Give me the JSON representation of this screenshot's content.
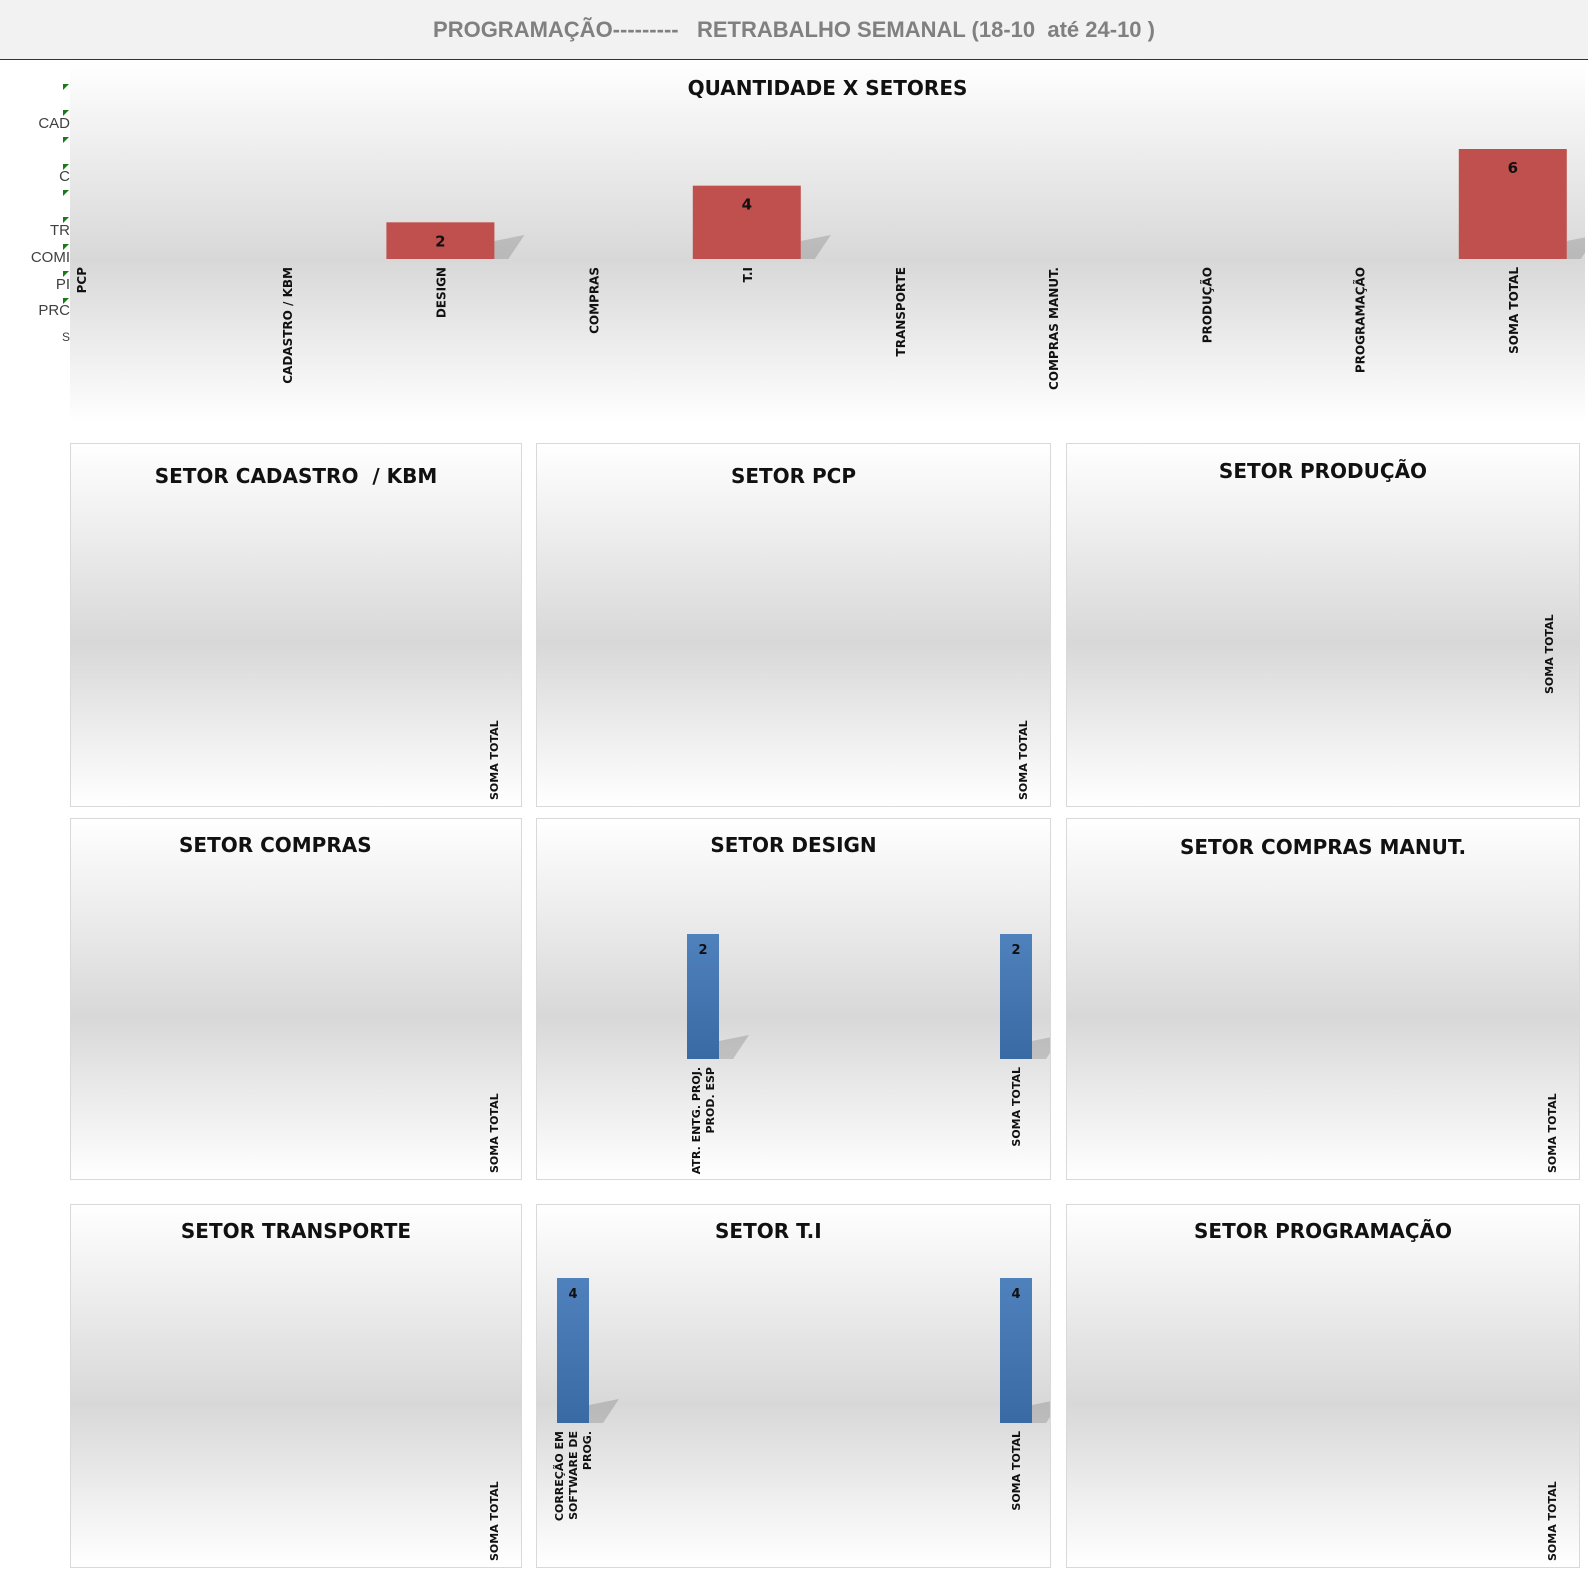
{
  "header": {
    "title": "PROGRAMAÇÃO---------   RETRABALHO SEMANAL (18-10  até 24-10 )"
  },
  "side_labels": [
    "CAD",
    "C",
    "TR",
    "COMI",
    "PI",
    "PRC",
    "S"
  ],
  "colors": {
    "main_bar": "#c0504d",
    "sector_bar": "#4f81bd",
    "sector_bar_dark": "#3a6aa3"
  },
  "chart_data": [
    {
      "type": "bar",
      "title": "QUANTIDADE X SETORES",
      "categories": [
        "PCP",
        "CADASTRO / KBM",
        "DESIGN",
        "COMPRAS",
        "T.I",
        "TRANSPORTE",
        "COMPRAS MANUT.",
        "PRODUÇÃO",
        "PROGRAMAÇÃO",
        "SOMA TOTAL"
      ],
      "values": [
        0,
        0,
        2,
        0,
        4,
        0,
        0,
        0,
        0,
        6
      ],
      "data_labels": [
        "",
        "",
        "2",
        "",
        "4",
        "",
        "",
        "",
        "",
        "6"
      ],
      "ylim": [
        0,
        6
      ],
      "grid": false
    },
    {
      "type": "bar",
      "title": "SETOR CADASTRO  / KBM",
      "categories": [
        "SOMA TOTAL"
      ],
      "values": [
        0
      ],
      "data_labels": [
        ""
      ]
    },
    {
      "type": "bar",
      "title": "SETOR PCP",
      "categories": [
        "SOMA TOTAL"
      ],
      "values": [
        0
      ],
      "data_labels": [
        ""
      ]
    },
    {
      "type": "bar",
      "title": "SETOR PRODUÇÃO",
      "categories": [
        "SOMA TOTAL"
      ],
      "values": [
        0
      ],
      "data_labels": [
        ""
      ]
    },
    {
      "type": "bar",
      "title": "SETOR COMPRAS",
      "categories": [
        "SOMA TOTAL"
      ],
      "values": [
        0
      ],
      "data_labels": [
        ""
      ]
    },
    {
      "type": "bar",
      "title": "SETOR DESIGN",
      "categories": [
        "ATR. ENTG. PROJ. PROD. ESP",
        "SOMA TOTAL"
      ],
      "values": [
        2,
        2
      ],
      "data_labels": [
        "2",
        "2"
      ]
    },
    {
      "type": "bar",
      "title": "SETOR COMPRAS MANUT.",
      "categories": [
        "SOMA TOTAL"
      ],
      "values": [
        0
      ],
      "data_labels": [
        ""
      ]
    },
    {
      "type": "bar",
      "title": "SETOR TRANSPORTE",
      "categories": [
        "SOMA TOTAL"
      ],
      "values": [
        0
      ],
      "data_labels": [
        ""
      ]
    },
    {
      "type": "bar",
      "title": "SETOR T.I",
      "categories": [
        "CORREÇÃO EM SOFTWARE DE PROG.",
        "SOMA TOTAL"
      ],
      "values": [
        4,
        4
      ],
      "data_labels": [
        "4",
        "4"
      ]
    },
    {
      "type": "bar",
      "title": "SETOR PROGRAMAÇÃO",
      "categories": [
        "SOMA TOTAL"
      ],
      "values": [
        0
      ],
      "data_labels": [
        ""
      ]
    }
  ]
}
